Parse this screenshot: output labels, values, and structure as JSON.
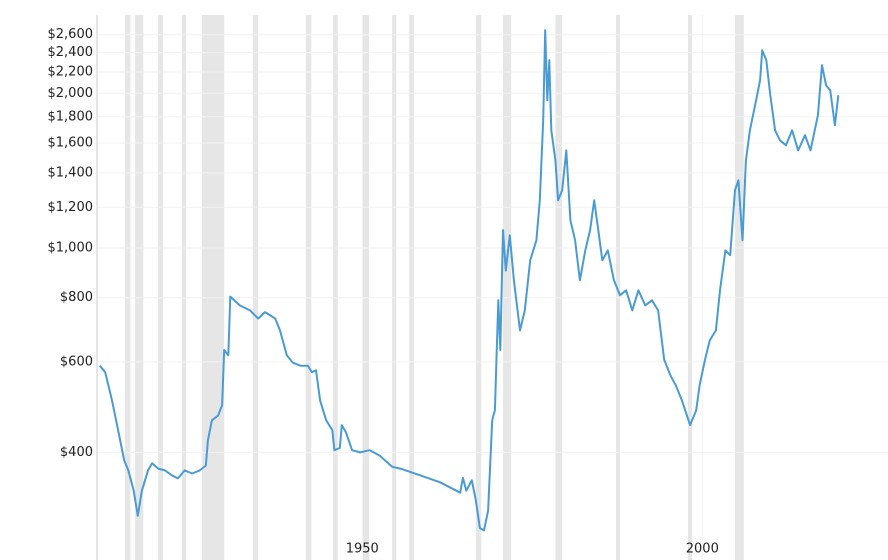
{
  "chart_data": {
    "type": "line",
    "log_y": true,
    "grid": true,
    "color": "#4a9bd4",
    "band_color": "#e6e6e6",
    "xlim": [
      1911,
      2027.3
    ],
    "ylim": [
      247,
      2840
    ],
    "xticks": [
      1950,
      2000
    ],
    "yticks": [
      {
        "value": 400,
        "label": "$400"
      },
      {
        "value": 600,
        "label": "$600"
      },
      {
        "value": 800,
        "label": "$800"
      },
      {
        "value": 1000,
        "label": "$1,000"
      },
      {
        "value": 1200,
        "label": "$1,200"
      },
      {
        "value": 1400,
        "label": "$1,400"
      },
      {
        "value": 1600,
        "label": "$1,600"
      },
      {
        "value": 1800,
        "label": "$1,800"
      },
      {
        "value": 2000,
        "label": "$2,000"
      },
      {
        "value": 2200,
        "label": "$2,200"
      },
      {
        "value": 2400,
        "label": "$2,400"
      },
      {
        "value": 2600,
        "label": "$2,600"
      }
    ],
    "bands": [
      [
        1915.1,
        1915.9
      ],
      [
        1916.6,
        1917.8
      ],
      [
        1920.0,
        1920.7
      ],
      [
        1923.5,
        1924.1
      ],
      [
        1926.4,
        1929.7
      ],
      [
        1933.9,
        1934.7
      ],
      [
        1941.7,
        1942.5
      ],
      [
        1945.7,
        1946.4
      ],
      [
        1950.1,
        1951.0
      ],
      [
        1954.4,
        1955.0
      ],
      [
        1956.9,
        1957.6
      ],
      [
        1966.7,
        1967.5
      ],
      [
        1970.7,
        1971.9
      ],
      [
        1978.4,
        1979.4
      ],
      [
        1987.3,
        1987.9
      ],
      [
        1997.9,
        1998.5
      ],
      [
        2004.8,
        2006.1
      ]
    ],
    "x": [
      1911.4,
      1912.2,
      1913.2,
      1914.1,
      1915.0,
      1915.6,
      1916.0,
      1916.4,
      1917.0,
      1917.6,
      1918.5,
      1919.1,
      1920.0,
      1921.0,
      1922.0,
      1922.9,
      1923.9,
      1925.0,
      1926.1,
      1927.0,
      1927.3,
      1927.9,
      1928.8,
      1929.4,
      1929.7,
      1930.3,
      1930.6,
      1932.0,
      1933.5,
      1934.7,
      1935.7,
      1937.2,
      1937.9,
      1938.9,
      1939.8,
      1940.9,
      1942.0,
      1942.6,
      1943.2,
      1943.8,
      1944.7,
      1945.6,
      1945.9,
      1946.7,
      1947.0,
      1947.6,
      1948.5,
      1949.7,
      1951.1,
      1952.6,
      1954.4,
      1955.6,
      1958.5,
      1961.4,
      1964.4,
      1964.8,
      1965.3,
      1966.1,
      1966.7,
      1967.3,
      1967.9,
      1968.5,
      1969.1,
      1969.5,
      1970.0,
      1970.3,
      1970.7,
      1971.1,
      1971.7,
      1972.3,
      1973.2,
      1973.9,
      1974.7,
      1975.6,
      1976.1,
      1976.6,
      1976.9,
      1977.2,
      1977.5,
      1977.8,
      1978.4,
      1978.8,
      1979.4,
      1980.0,
      1980.6,
      1981.3,
      1982.0,
      1982.8,
      1983.5,
      1984.1,
      1984.7,
      1985.3,
      1986.1,
      1987.0,
      1987.9,
      1988.8,
      1989.7,
      1990.6,
      1991.6,
      1992.6,
      1993.5,
      1994.4,
      1995.3,
      1996.1,
      1997.0,
      1998.2,
      1999.1,
      1999.6,
      2000.4,
      2001.1,
      2002.0,
      2002.6,
      2003.4,
      2004.1,
      2004.8,
      2005.3,
      2005.9,
      2006.4,
      2007.0,
      2007.9,
      2008.5,
      2008.8,
      2009.4,
      2010.0,
      2010.7,
      2011.4,
      2012.3,
      2013.2,
      2014.1,
      2015.1,
      2015.9,
      2017.0,
      2017.6,
      2018.2,
      2018.8,
      2019.5,
      2020.0
    ],
    "values": [
      590,
      573,
      505,
      442,
      386,
      369,
      353,
      337,
      301,
      337,
      369,
      381,
      372,
      369,
      361,
      356,
      369,
      364,
      369,
      377,
      422,
      462,
      472,
      494,
      633,
      618,
      804,
      773,
      756,
      729,
      750,
      729,
      691,
      618,
      598,
      590,
      590,
      573,
      578,
      505,
      462,
      442,
      404,
      408,
      452,
      438,
      404,
      400,
      404,
      394,
      375,
      372,
      361,
      350,
      334,
      357,
      337,
      353,
      323,
      285,
      282,
      308,
      462,
      483,
      791,
      633,
      1083,
      904,
      1058,
      865,
      691,
      756,
      946,
      1035,
      1238,
      1772,
      2654,
      1938,
      2320,
      1694,
      1480,
      1238,
      1295,
      1548,
      1132,
      1035,
      865,
      989,
      1083,
      1238,
      1083,
      946,
      989,
      865,
      809,
      827,
      756,
      827,
      773,
      791,
      756,
      606,
      565,
      540,
      505,
      452,
      483,
      540,
      606,
      661,
      691,
      827,
      989,
      968,
      1295,
      1354,
      1035,
      1480,
      1694,
      1938,
      2120,
      2424,
      2320,
      1982,
      1694,
      1620,
      1584,
      1694,
      1548,
      1657,
      1548,
      1812,
      2269,
      2072,
      2027,
      1733,
      1982
    ]
  }
}
